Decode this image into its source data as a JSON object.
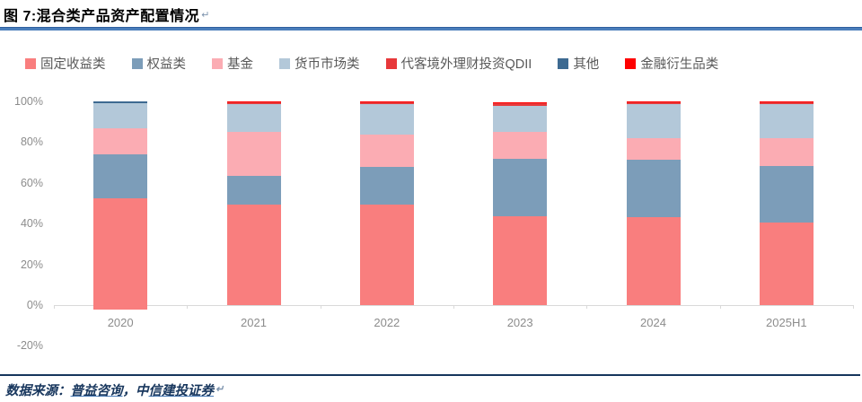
{
  "header": {
    "title": "图 7:混合类产品资产配置情况",
    "return_mark": "↵"
  },
  "chart_data": {
    "type": "bar",
    "subtype": "stacked-percent",
    "title": "混合类产品资产配置情况",
    "categories": [
      "2020",
      "2021",
      "2022",
      "2023",
      "2024",
      "2025H1"
    ],
    "series": [
      {
        "name": "固定收益类",
        "color": "#f97e7e",
        "values": [
          52.5,
          49.5,
          49.5,
          43.5,
          43.0,
          40.5
        ]
      },
      {
        "name": "权益类",
        "color": "#7c9db9",
        "values": [
          21.5,
          14.0,
          18.5,
          28.5,
          28.5,
          28.0
        ]
      },
      {
        "name": "基金",
        "color": "#fbacb3",
        "values": [
          13.0,
          21.5,
          15.5,
          13.0,
          10.5,
          13.5
        ]
      },
      {
        "name": "货币市场类",
        "color": "#b3c8d9",
        "values": [
          12.0,
          13.5,
          15.0,
          13.0,
          16.5,
          16.5
        ]
      },
      {
        "name": "代客境外理财投资QDII",
        "color": "#e7383a",
        "values": [
          0.0,
          1.2,
          1.0,
          1.0,
          1.0,
          1.0
        ]
      },
      {
        "name": "其他",
        "color": "#3d6a91",
        "values": [
          1.0,
          0.0,
          0.0,
          0.0,
          0.3,
          0.0
        ]
      },
      {
        "name": "金融衍生品类",
        "color": "#fe0000",
        "values": [
          0.0,
          0.3,
          0.5,
          0.5,
          0.2,
          0.5
        ]
      }
    ],
    "y_axis": {
      "min": -20,
      "max": 100,
      "step": 20,
      "tick_suffix": "%",
      "tick_labels": [
        "100%",
        "80%",
        "60%",
        "40%",
        "20%",
        "0%",
        "-20%"
      ]
    },
    "grid": false,
    "legend_position": "top",
    "overhang": {
      "category": "2020",
      "series": "固定收益类",
      "below_zero": 2.0,
      "note": "2020 bottom segment extends slightly below the 0% axis"
    }
  },
  "footer": {
    "prefix": "数据来源：",
    "source1": "普益咨询",
    "separator": "，",
    "source2_plain": "中",
    "source2_linked": "信建投证券",
    "return_mark": "↵"
  },
  "colors": {
    "title_rule": "#4a7ebb",
    "footer_rule": "#16365c",
    "axis_line": "#d9d9d9",
    "axis_text": "#8c8c8c",
    "legend_text": "#595959",
    "footer_text": "#17365d"
  }
}
